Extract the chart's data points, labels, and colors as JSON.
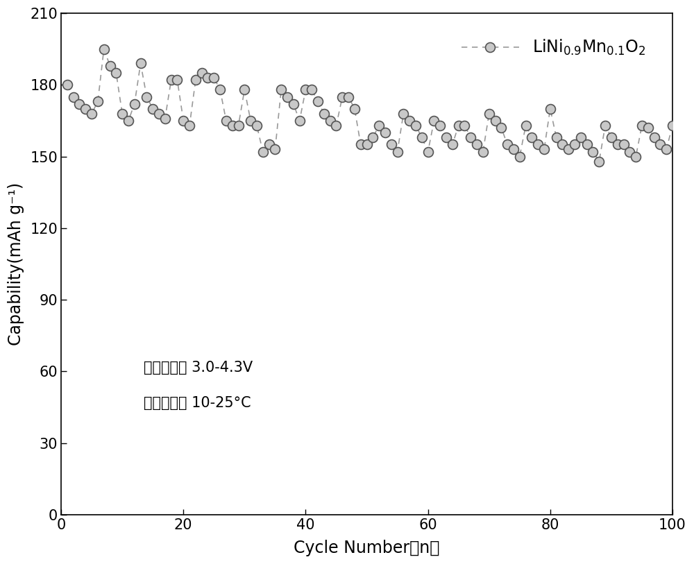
{
  "x": [
    1,
    2,
    3,
    4,
    5,
    6,
    7,
    8,
    9,
    10,
    11,
    12,
    13,
    14,
    15,
    16,
    17,
    18,
    19,
    20,
    21,
    22,
    23,
    24,
    25,
    26,
    27,
    28,
    29,
    30,
    31,
    32,
    33,
    34,
    35,
    36,
    37,
    38,
    39,
    40,
    41,
    42,
    43,
    44,
    45,
    46,
    47,
    48,
    49,
    50,
    51,
    52,
    53,
    54,
    55,
    56,
    57,
    58,
    59,
    60,
    61,
    62,
    63,
    64,
    65,
    66,
    67,
    68,
    69,
    70,
    71,
    72,
    73,
    74,
    75,
    76,
    77,
    78,
    79,
    80,
    81,
    82,
    83,
    84,
    85,
    86,
    87,
    88,
    89,
    90,
    91,
    92,
    93,
    94,
    95,
    96,
    97,
    98,
    99,
    100
  ],
  "y": [
    180,
    175,
    172,
    170,
    168,
    173,
    195,
    188,
    185,
    168,
    165,
    172,
    189,
    175,
    170,
    168,
    166,
    182,
    182,
    165,
    163,
    182,
    185,
    183,
    183,
    178,
    165,
    163,
    163,
    178,
    165,
    163,
    152,
    155,
    153,
    178,
    175,
    172,
    165,
    178,
    178,
    173,
    168,
    165,
    163,
    175,
    175,
    170,
    155,
    155,
    158,
    163,
    160,
    155,
    152,
    168,
    165,
    163,
    158,
    152,
    165,
    163,
    158,
    155,
    163,
    163,
    158,
    155,
    152,
    168,
    165,
    162,
    155,
    153,
    150,
    163,
    158,
    155,
    153,
    170,
    158,
    155,
    153,
    155,
    158,
    155,
    152,
    148,
    163,
    158,
    155,
    155,
    152,
    150,
    163,
    162,
    158,
    155,
    153,
    163
  ],
  "line_color": "#999999",
  "marker_facecolor": "#c8c8c8",
  "marker_edgecolor": "#555555",
  "ylabel": "Capability(mAh g⁻¹)",
  "xlabel": "Cycle Number（n）",
  "ylim": [
    0,
    210
  ],
  "xlim": [
    0,
    100
  ],
  "yticks": [
    0,
    30,
    60,
    90,
    120,
    150,
    180,
    210
  ],
  "xticks": [
    0,
    20,
    40,
    60,
    80,
    100
  ],
  "annotation_line1": "测试电压： 3.0-4.3V",
  "annotation_line2": "测试温度： 10-25°C",
  "legend_label": "LiNi$_{0.9}$Mn$_{0.1}$O$_2$",
  "background_color": "#ffffff",
  "marker_size": 10,
  "fontsize_axis_label": 17,
  "fontsize_tick": 15,
  "fontsize_annotation": 15,
  "fontsize_legend": 17
}
